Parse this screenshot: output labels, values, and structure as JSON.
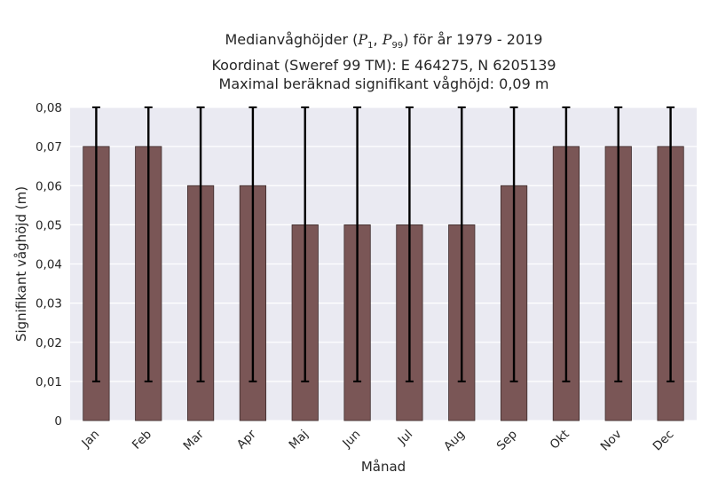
{
  "title": {
    "line1_prefix": "Medianvåghöjder (",
    "p1_symbol": "P",
    "p1_sub": "1",
    "separator": ", ",
    "p99_symbol": "P",
    "p99_sub": "99",
    "line1_suffix": ") för år 1979 - 2019",
    "line2": "Koordinat (Sweref 99 TM): E 464275, N 6205139",
    "line3": "Maximal beräknad signifikant våghöjd: 0,09 m"
  },
  "chart_data": {
    "type": "bar",
    "xlabel": "Månad",
    "ylabel": "Signifikant våghöjd (m)",
    "ylim": [
      0,
      0.08
    ],
    "yticks": [
      0,
      0.01,
      0.02,
      0.03,
      0.04,
      0.05,
      0.06,
      0.07,
      0.08
    ],
    "ytick_labels": [
      "0",
      "0,01",
      "0,02",
      "0,03",
      "0,04",
      "0,05",
      "0,06",
      "0,07",
      "0,08"
    ],
    "categories": [
      "Jan",
      "Feb",
      "Mar",
      "Apr",
      "Maj",
      "Jun",
      "Jul",
      "Aug",
      "Sep",
      "Okt",
      "Nov",
      "Dec"
    ],
    "values": [
      0.07,
      0.07,
      0.06,
      0.06,
      0.05,
      0.05,
      0.05,
      0.05,
      0.06,
      0.07,
      0.07,
      0.07
    ],
    "error_low": [
      0.01,
      0.01,
      0.01,
      0.01,
      0.01,
      0.01,
      0.01,
      0.01,
      0.01,
      0.01,
      0.01,
      0.01
    ],
    "error_high": [
      0.08,
      0.08,
      0.08,
      0.08,
      0.08,
      0.08,
      0.08,
      0.08,
      0.08,
      0.08,
      0.08,
      0.08
    ],
    "grid": true,
    "colors": {
      "bar": "#7a5656",
      "bar_edge": "#3d2b2b",
      "error_bar": "#000000",
      "plot_bg": "#eaeaf2",
      "grid": "#ffffff"
    }
  }
}
